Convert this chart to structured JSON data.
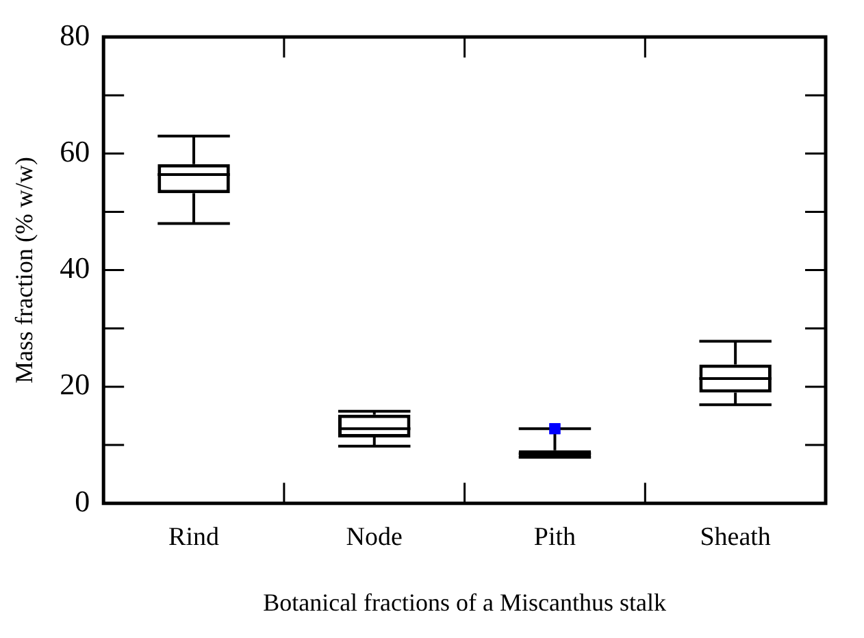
{
  "chart_data": {
    "type": "box",
    "xlabel": "Botanical fractions of a Miscanthus stalk",
    "ylabel": "Mass fraction (% w/w)",
    "categories": [
      "Rind",
      "Node",
      "Pith",
      "Sheath"
    ],
    "ylim": [
      0,
      80
    ],
    "yticks": [
      0,
      {
        "value": 10,
        "label": null
      },
      20,
      {
        "value": 30,
        "label": null
      },
      40,
      {
        "value": 50,
        "label": null
      },
      60,
      {
        "value": 70,
        "label": null
      },
      80
    ],
    "grid": false,
    "legend": false,
    "series": [
      {
        "color": "#000000",
        "boxes": [
          {
            "low": 48,
            "q1": 53.2,
            "median": 56.4,
            "q3": 58.2,
            "high": 63
          },
          {
            "low": 9.8,
            "q1": 11.3,
            "median": 12.8,
            "q3": 15.2,
            "high": 15.8
          },
          {
            "low": 7.9,
            "q1": 7.9,
            "median": 8.5,
            "q3": 9.1,
            "high": 12.8
          },
          {
            "low": 16.9,
            "q1": 19,
            "median": 21.4,
            "q3": 23.8,
            "high": 27.8
          }
        ]
      },
      {
        "type": "scatter",
        "x": [
          "Pith"
        ],
        "values": [
          12.8
        ],
        "color": "#0000ff",
        "marker": "square"
      }
    ]
  }
}
